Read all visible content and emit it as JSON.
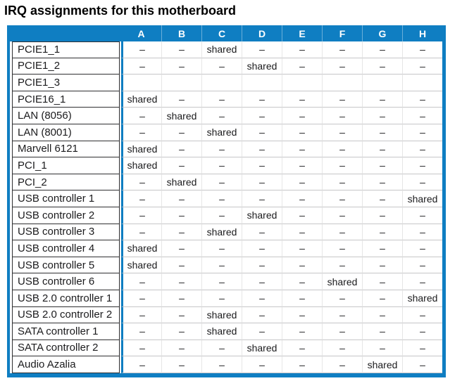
{
  "title": "IRQ assignments for this motherboard",
  "table": {
    "corner_label": "",
    "columns": [
      "A",
      "B",
      "C",
      "D",
      "E",
      "F",
      "G",
      "H"
    ],
    "rows": [
      {
        "device": "PCIE1_1",
        "values": [
          "–",
          "–",
          "shared",
          "–",
          "–",
          "–",
          "–",
          "–"
        ]
      },
      {
        "device": "PCIE1_2",
        "values": [
          "–",
          "–",
          "–",
          "shared",
          "–",
          "–",
          "–",
          "–"
        ]
      },
      {
        "device": "PCIE1_3",
        "values": [
          "",
          "",
          "",
          "",
          "",
          "",
          "",
          ""
        ]
      },
      {
        "device": "PCIE16_1",
        "values": [
          "shared",
          "–",
          "–",
          "–",
          "–",
          "–",
          "–",
          "–"
        ]
      },
      {
        "device": "LAN (8056)",
        "values": [
          "–",
          "shared",
          "–",
          "–",
          "–",
          "–",
          "–",
          "–"
        ]
      },
      {
        "device": "LAN (8001)",
        "values": [
          "–",
          "–",
          "shared",
          "–",
          "–",
          "–",
          "–",
          "–"
        ]
      },
      {
        "device": "Marvell 6121",
        "values": [
          "shared",
          "–",
          "–",
          "–",
          "–",
          "–",
          "–",
          "–"
        ]
      },
      {
        "device": "PCI_1",
        "values": [
          "shared",
          "–",
          "–",
          "–",
          "–",
          "–",
          "–",
          "–"
        ]
      },
      {
        "device": "PCI_2",
        "values": [
          "–",
          "shared",
          "–",
          "–",
          "–",
          "–",
          "–",
          "–"
        ]
      },
      {
        "device": "USB controller 1",
        "values": [
          "–",
          "–",
          "–",
          "–",
          "–",
          "–",
          "–",
          "shared"
        ]
      },
      {
        "device": "USB controller 2",
        "values": [
          "–",
          "–",
          "–",
          "shared",
          "–",
          "–",
          "–",
          "–"
        ]
      },
      {
        "device": "USB controller 3",
        "values": [
          "–",
          "–",
          "shared",
          "–",
          "–",
          "–",
          "–",
          "–"
        ]
      },
      {
        "device": "USB controller 4",
        "values": [
          "shared",
          "–",
          "–",
          "–",
          "–",
          "–",
          "–",
          "–"
        ]
      },
      {
        "device": "USB controller 5",
        "values": [
          "shared",
          "–",
          "–",
          "–",
          "–",
          "–",
          "–",
          "–"
        ]
      },
      {
        "device": "USB controller 6",
        "values": [
          "–",
          "–",
          "–",
          "–",
          "–",
          "shared",
          "–",
          "–"
        ]
      },
      {
        "device": "USB 2.0 controller 1",
        "values": [
          "–",
          "–",
          "–",
          "–",
          "–",
          "–",
          "–",
          "shared"
        ]
      },
      {
        "device": "USB 2.0 controller 2",
        "values": [
          "–",
          "–",
          "shared",
          "–",
          "–",
          "–",
          "–",
          "–"
        ]
      },
      {
        "device": "SATA controller 1",
        "values": [
          "–",
          "–",
          "shared",
          "–",
          "–",
          "–",
          "–",
          "–"
        ]
      },
      {
        "device": "SATA controller 2",
        "values": [
          "–",
          "–",
          "–",
          "shared",
          "–",
          "–",
          "–",
          "–"
        ]
      },
      {
        "device": "Audio Azalia",
        "values": [
          "–",
          "–",
          "–",
          "–",
          "–",
          "–",
          "shared",
          "–"
        ]
      }
    ]
  },
  "colors": {
    "accent_blue": "#0f7ec2",
    "header_text": "#ffffff",
    "body_text": "#1b1b1d",
    "label_border": "#2f2f31",
    "grid_line": "#c6c6c8",
    "grid_line_light": "#e6e6e6",
    "page_bg": "#ffffff"
  }
}
